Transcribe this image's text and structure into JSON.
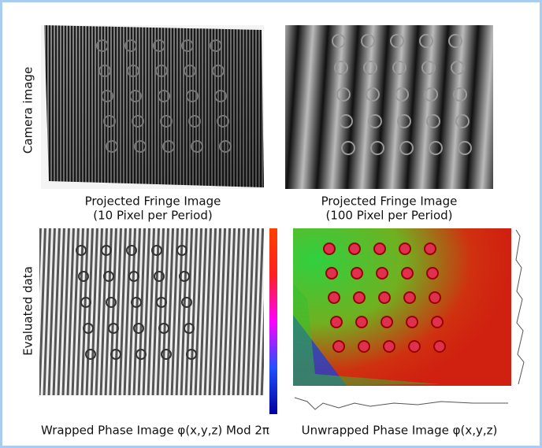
{
  "row_labels": [
    "Camera image",
    "Evaluated data"
  ],
  "panels": [
    {
      "title": "Projected Fringe Image",
      "subtitle": "(10 Pixel per Period)"
    },
    {
      "title": "Projected Fringe Image",
      "subtitle": "(100 Pixel per Period)"
    },
    {
      "title": "Wrapped Phase Image φ(x,y,z) Mod 2π"
    },
    {
      "title": "Unwrapped Phase Image φ(x,y,z)"
    }
  ]
}
